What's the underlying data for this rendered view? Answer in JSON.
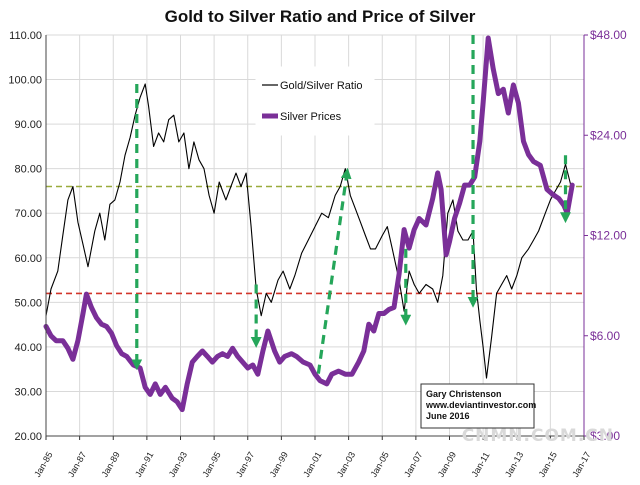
{
  "chart_data": {
    "type": "line",
    "title": "Gold to Silver Ratio and Price of Silver",
    "xlabel": "",
    "ylabel": "",
    "x_ticks": [
      "Jan-85",
      "Jan-87",
      "Jan-89",
      "Jan-91",
      "Jan-93",
      "Jan-95",
      "Jan-97",
      "Jan-99",
      "Jan-01",
      "Jan-03",
      "Jan-05",
      "Jan-07",
      "Jan-09",
      "Jan-11",
      "Jan-13",
      "Jan-15",
      "Jan-17"
    ],
    "xlim": [
      1985.0,
      2017.0
    ],
    "y_left": {
      "ticks": [
        "20.00",
        "30.00",
        "40.00",
        "50.00",
        "60.00",
        "70.00",
        "80.00",
        "90.00",
        "100.00",
        "110.00"
      ],
      "range": [
        20,
        110
      ]
    },
    "y_right": {
      "ticks": [
        "$3.00",
        "$6.00",
        "$12.00",
        "$24.00",
        "$48.00"
      ],
      "range": [
        3,
        48
      ],
      "scale": "log"
    },
    "series": [
      {
        "name": "Gold/Silver Ratio",
        "axis": "left",
        "color": "#000000",
        "points": [
          [
            1985.0,
            47
          ],
          [
            1985.3,
            53
          ],
          [
            1985.7,
            57
          ],
          [
            1986.0,
            65
          ],
          [
            1986.3,
            73
          ],
          [
            1986.6,
            76
          ],
          [
            1986.9,
            68
          ],
          [
            1987.2,
            63
          ],
          [
            1987.5,
            58
          ],
          [
            1987.9,
            66
          ],
          [
            1988.2,
            70
          ],
          [
            1988.5,
            64
          ],
          [
            1988.8,
            72
          ],
          [
            1989.1,
            73
          ],
          [
            1989.4,
            77
          ],
          [
            1989.7,
            83
          ],
          [
            1990.0,
            87
          ],
          [
            1990.3,
            92
          ],
          [
            1990.6,
            96
          ],
          [
            1990.9,
            99
          ],
          [
            1991.1,
            94
          ],
          [
            1991.4,
            85
          ],
          [
            1991.7,
            88
          ],
          [
            1992.0,
            86
          ],
          [
            1992.3,
            91
          ],
          [
            1992.6,
            92
          ],
          [
            1992.9,
            86
          ],
          [
            1993.2,
            88
          ],
          [
            1993.5,
            80
          ],
          [
            1993.8,
            86
          ],
          [
            1994.1,
            82
          ],
          [
            1994.4,
            80
          ],
          [
            1994.7,
            74
          ],
          [
            1995.0,
            70
          ],
          [
            1995.3,
            77
          ],
          [
            1995.7,
            73
          ],
          [
            1996.0,
            76
          ],
          [
            1996.3,
            79
          ],
          [
            1996.6,
            76
          ],
          [
            1996.9,
            79
          ],
          [
            1997.2,
            67
          ],
          [
            1997.5,
            53
          ],
          [
            1997.8,
            47
          ],
          [
            1998.1,
            52
          ],
          [
            1998.4,
            50
          ],
          [
            1998.8,
            55
          ],
          [
            1999.1,
            57
          ],
          [
            1999.5,
            53
          ],
          [
            1999.8,
            56
          ],
          [
            2000.2,
            61
          ],
          [
            2000.6,
            64
          ],
          [
            2001.0,
            67
          ],
          [
            2001.4,
            70
          ],
          [
            2001.8,
            69
          ],
          [
            2002.2,
            74
          ],
          [
            2002.5,
            76
          ],
          [
            2002.8,
            80
          ],
          [
            2003.1,
            74
          ],
          [
            2003.4,
            71
          ],
          [
            2003.7,
            68
          ],
          [
            2004.0,
            65
          ],
          [
            2004.3,
            62
          ],
          [
            2004.6,
            62
          ],
          [
            2005.0,
            65
          ],
          [
            2005.3,
            67
          ],
          [
            2005.6,
            62
          ],
          [
            2006.0,
            55
          ],
          [
            2006.3,
            48
          ],
          [
            2006.6,
            57
          ],
          [
            2006.9,
            54
          ],
          [
            2007.2,
            52
          ],
          [
            2007.6,
            54
          ],
          [
            2008.0,
            53
          ],
          [
            2008.3,
            50
          ],
          [
            2008.6,
            56
          ],
          [
            2008.9,
            70
          ],
          [
            2009.2,
            73
          ],
          [
            2009.5,
            66
          ],
          [
            2009.8,
            64
          ],
          [
            2010.1,
            64
          ],
          [
            2010.4,
            66
          ],
          [
            2010.6,
            53
          ],
          [
            2010.8,
            46
          ],
          [
            2011.0,
            40
          ],
          [
            2011.2,
            33
          ],
          [
            2011.5,
            42
          ],
          [
            2011.8,
            52
          ],
          [
            2012.1,
            54
          ],
          [
            2012.4,
            56
          ],
          [
            2012.7,
            53
          ],
          [
            2013.0,
            56
          ],
          [
            2013.3,
            60
          ],
          [
            2013.7,
            62
          ],
          [
            2014.0,
            64
          ],
          [
            2014.3,
            66
          ],
          [
            2014.7,
            70
          ],
          [
            2015.0,
            73
          ],
          [
            2015.3,
            75
          ],
          [
            2015.6,
            77
          ],
          [
            2015.9,
            81
          ],
          [
            2016.1,
            78
          ],
          [
            2016.3,
            75
          ]
        ]
      },
      {
        "name": "Silver Prices",
        "axis": "right",
        "color": "#7a2f98",
        "points": [
          [
            1985.0,
            6.4
          ],
          [
            1985.3,
            6.0
          ],
          [
            1985.6,
            5.8
          ],
          [
            1986.0,
            5.8
          ],
          [
            1986.3,
            5.5
          ],
          [
            1986.6,
            5.1
          ],
          [
            1986.9,
            5.8
          ],
          [
            1987.2,
            7.0
          ],
          [
            1987.4,
            8.0
          ],
          [
            1987.7,
            7.3
          ],
          [
            1988.0,
            6.8
          ],
          [
            1988.3,
            6.5
          ],
          [
            1988.6,
            6.4
          ],
          [
            1988.9,
            6.1
          ],
          [
            1989.2,
            5.6
          ],
          [
            1989.5,
            5.3
          ],
          [
            1989.8,
            5.2
          ],
          [
            1990.2,
            4.9
          ],
          [
            1990.6,
            4.8
          ],
          [
            1990.9,
            4.2
          ],
          [
            1991.2,
            4.0
          ],
          [
            1991.5,
            4.3
          ],
          [
            1991.8,
            4.0
          ],
          [
            1992.1,
            4.2
          ],
          [
            1992.5,
            3.9
          ],
          [
            1992.8,
            3.8
          ],
          [
            1993.1,
            3.6
          ],
          [
            1993.4,
            4.3
          ],
          [
            1993.7,
            5.0
          ],
          [
            1994.0,
            5.2
          ],
          [
            1994.3,
            5.4
          ],
          [
            1994.6,
            5.2
          ],
          [
            1994.9,
            5.0
          ],
          [
            1995.2,
            5.2
          ],
          [
            1995.5,
            5.3
          ],
          [
            1995.8,
            5.2
          ],
          [
            1996.1,
            5.5
          ],
          [
            1996.4,
            5.2
          ],
          [
            1996.7,
            5.0
          ],
          [
            1997.0,
            4.8
          ],
          [
            1997.3,
            4.9
          ],
          [
            1997.6,
            4.6
          ],
          [
            1997.9,
            5.4
          ],
          [
            1998.2,
            6.2
          ],
          [
            1998.6,
            5.4
          ],
          [
            1998.9,
            5.0
          ],
          [
            1999.2,
            5.2
          ],
          [
            1999.6,
            5.3
          ],
          [
            1999.9,
            5.2
          ],
          [
            2000.3,
            5.0
          ],
          [
            2000.7,
            4.9
          ],
          [
            2001.0,
            4.6
          ],
          [
            2001.3,
            4.4
          ],
          [
            2001.7,
            4.3
          ],
          [
            2002.0,
            4.6
          ],
          [
            2002.4,
            4.7
          ],
          [
            2002.8,
            4.6
          ],
          [
            2003.2,
            4.6
          ],
          [
            2003.6,
            5.0
          ],
          [
            2003.9,
            5.4
          ],
          [
            2004.2,
            6.5
          ],
          [
            2004.5,
            6.2
          ],
          [
            2004.8,
            7.0
          ],
          [
            2005.1,
            7.0
          ],
          [
            2005.4,
            7.2
          ],
          [
            2005.7,
            7.3
          ],
          [
            2006.0,
            9.2
          ],
          [
            2006.3,
            12.5
          ],
          [
            2006.6,
            11.0
          ],
          [
            2006.9,
            12.5
          ],
          [
            2007.2,
            13.5
          ],
          [
            2007.6,
            12.9
          ],
          [
            2008.0,
            15.5
          ],
          [
            2008.3,
            18.5
          ],
          [
            2008.5,
            16.5
          ],
          [
            2008.8,
            10.5
          ],
          [
            2009.0,
            11.5
          ],
          [
            2009.3,
            13.5
          ],
          [
            2009.6,
            15.0
          ],
          [
            2009.9,
            17.0
          ],
          [
            2010.2,
            17.0
          ],
          [
            2010.5,
            18.0
          ],
          [
            2010.8,
            23.0
          ],
          [
            2011.0,
            30.0
          ],
          [
            2011.3,
            47.0
          ],
          [
            2011.6,
            38.0
          ],
          [
            2011.9,
            32.0
          ],
          [
            2012.2,
            33.0
          ],
          [
            2012.5,
            28.0
          ],
          [
            2012.8,
            34.0
          ],
          [
            2013.1,
            30.0
          ],
          [
            2013.4,
            23.0
          ],
          [
            2013.7,
            21.0
          ],
          [
            2014.0,
            20.0
          ],
          [
            2014.4,
            19.5
          ],
          [
            2014.8,
            16.5
          ],
          [
            2015.1,
            16.0
          ],
          [
            2015.5,
            15.5
          ],
          [
            2015.8,
            14.8
          ],
          [
            2016.0,
            14.0
          ],
          [
            2016.3,
            17.0
          ]
        ]
      }
    ],
    "reference_lines": [
      {
        "axis": "left",
        "value": 76,
        "color": "#9aab3c"
      },
      {
        "axis": "left",
        "value": 52,
        "color": "#d2352a"
      }
    ],
    "arrows": [
      {
        "from": [
          1990.4,
          99
        ],
        "to": [
          1990.4,
          36
        ]
      },
      {
        "from": [
          1997.5,
          54
        ],
        "to": [
          1997.5,
          41
        ]
      },
      {
        "from": [
          2001.2,
          34
        ],
        "to": [
          2002.9,
          79
        ]
      },
      {
        "from": [
          2006.4,
          62
        ],
        "to": [
          2006.4,
          46
        ]
      },
      {
        "from": [
          2010.4,
          110
        ],
        "to": [
          2010.4,
          50
        ]
      },
      {
        "from": [
          2015.9,
          83
        ],
        "to": [
          2015.9,
          69
        ]
      }
    ],
    "legend": {
      "position": "top-center",
      "entries": [
        "Gold/Silver Ratio",
        "Silver Prices"
      ]
    },
    "annotation": [
      "Gary Christenson",
      "www.deviantinvestor.com",
      "June 2016"
    ],
    "grid": true,
    "watermark": "CNMN.COM.CN",
    "colors": {
      "ratio": "#000000",
      "silver": "#7a2f98",
      "arrow": "#25a65a",
      "grid": "#d9d9d9"
    }
  }
}
